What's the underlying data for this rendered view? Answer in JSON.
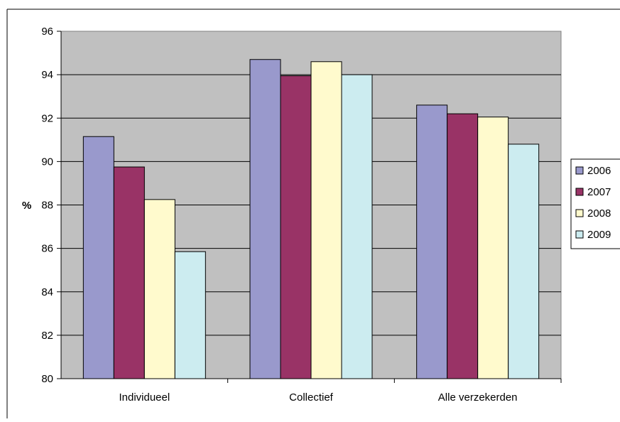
{
  "chart_data": {
    "type": "bar",
    "categories": [
      "Individueel",
      "Collectief",
      "Alle verzekerden"
    ],
    "series": [
      {
        "name": "2006",
        "color": "#9999cc",
        "values": [
          91.15,
          94.7,
          92.6
        ]
      },
      {
        "name": "2007",
        "color": "#993366",
        "values": [
          89.75,
          93.95,
          92.2
        ]
      },
      {
        "name": "2008",
        "color": "#fffacd",
        "values": [
          88.25,
          94.6,
          92.05
        ]
      },
      {
        "name": "2009",
        "color": "#ccecf0",
        "values": [
          85.85,
          94.0,
          90.8
        ]
      }
    ],
    "ylabel": "%",
    "ylim": [
      80,
      96
    ],
    "yticks": [
      80,
      82,
      84,
      86,
      88,
      90,
      92,
      94,
      96
    ],
    "grid": true,
    "plot_background": "#c0c0c0",
    "legend": "right"
  }
}
